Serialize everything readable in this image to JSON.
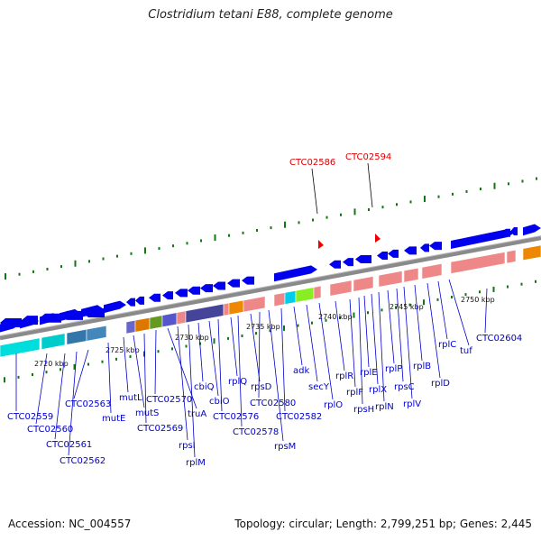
{
  "title": "Clostridium tetani E88, complete genome",
  "footer": {
    "accession": "Accession: NC_004557",
    "summary": "Topology: circular; Length: 2,799,251 bp; Genes: 2,445"
  },
  "colors": {
    "forward_gene": "#0000ee",
    "gene_label": "#0000cc",
    "highlight_label": "#dd0000",
    "tick": "#117711",
    "backbone": "#8a8a8a"
  },
  "kbp_labels": [
    "2720 kbp",
    "2725 kbp",
    "2730 kbp",
    "2735 kbp",
    "2740 kbp",
    "2745 kbp",
    "2750 kbp"
  ],
  "highlighted_genes": [
    "CTC02586",
    "CTC02594"
  ],
  "gene_labels": [
    "CTC02559",
    "CTC02560",
    "CTC02561",
    "CTC02562",
    "CTC02563",
    "mutE",
    "mutL",
    "mutS",
    "CTC02569",
    "CTC02570",
    "truA",
    "rpsI",
    "rplM",
    "cbiQ",
    "cbiO",
    "CTC02576",
    "rplQ",
    "CTC02578",
    "rpsD",
    "CTC02580",
    "rpsM",
    "CTC02582",
    "adk",
    "secY",
    "rplO",
    "rplR",
    "rplF",
    "rpsH",
    "rplE",
    "rplX",
    "rplN",
    "rplP",
    "rpsC",
    "rplV",
    "rplB",
    "rplD",
    "rplC",
    "tuf",
    "CTC02604"
  ]
}
